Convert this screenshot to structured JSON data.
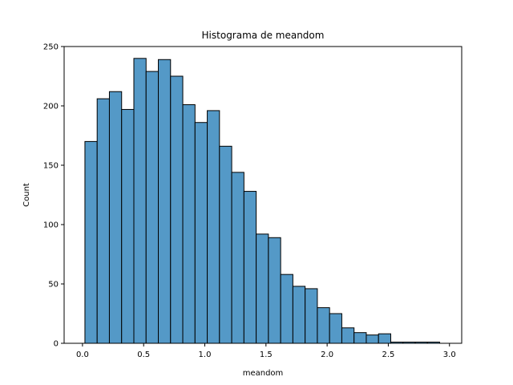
{
  "chart_data": {
    "type": "bar",
    "title": "Histograma de meandom",
    "xlabel": "meandom",
    "ylabel": "Count",
    "xlim": [
      -0.15,
      3.1
    ],
    "ylim": [
      0,
      250
    ],
    "xticks": [
      0.0,
      0.5,
      1.0,
      1.5,
      2.0,
      2.5,
      3.0
    ],
    "xtick_labels": [
      "0.0",
      "0.5",
      "1.0",
      "1.5",
      "2.0",
      "2.5",
      "3.0"
    ],
    "yticks": [
      0,
      50,
      100,
      150,
      200,
      250
    ],
    "ytick_labels": [
      "0",
      "50",
      "100",
      "150",
      "200",
      "250"
    ],
    "bin_start": 0.02,
    "bin_width": 0.1,
    "values": [
      170,
      206,
      212,
      197,
      240,
      229,
      239,
      225,
      201,
      186,
      196,
      166,
      144,
      128,
      92,
      89,
      58,
      48,
      46,
      30,
      25,
      13,
      9,
      7,
      8,
      1,
      1,
      1,
      1
    ],
    "bar_color": "#5499c7",
    "edge_color": "#000000",
    "grid": false
  }
}
